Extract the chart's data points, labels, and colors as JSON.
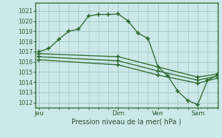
{
  "background_color": "#cce8e8",
  "plot_bg_color": "#cce8e8",
  "line_color": "#2d6a2d",
  "grid_color": "#99bbbb",
  "title": "Pression niveau de la mer( hPa )",
  "ylabel_values": [
    1012,
    1013,
    1014,
    1015,
    1016,
    1017,
    1018,
    1019,
    1020,
    1021
  ],
  "xlim": [
    -2,
    108
  ],
  "ylim": [
    1011.5,
    1021.8
  ],
  "x_tick_positions": [
    0,
    48,
    72,
    96
  ],
  "x_tick_labels": [
    "Jeu",
    "Dim",
    "Ven",
    "Sam"
  ],
  "series1_x": [
    0,
    6,
    12,
    18,
    24,
    30,
    36,
    42,
    48,
    54,
    60,
    66,
    72,
    78,
    84,
    90,
    96,
    102,
    108
  ],
  "series1_y": [
    1017.0,
    1017.3,
    1018.2,
    1019.0,
    1019.2,
    1020.5,
    1020.65,
    1020.65,
    1020.7,
    1020.0,
    1018.8,
    1018.3,
    1015.5,
    1014.6,
    1013.1,
    1012.2,
    1011.8,
    1014.2,
    1014.7
  ],
  "series2_x": [
    0,
    48,
    72,
    96,
    108
  ],
  "series2_y": [
    1016.8,
    1016.5,
    1015.5,
    1014.5,
    1014.8
  ],
  "series3_x": [
    0,
    48,
    72,
    96,
    108
  ],
  "series3_y": [
    1016.5,
    1016.1,
    1015.1,
    1014.2,
    1014.6
  ],
  "series4_x": [
    0,
    48,
    72,
    96,
    108
  ],
  "series4_y": [
    1016.2,
    1015.7,
    1014.7,
    1013.9,
    1014.4
  ],
  "marker": "+",
  "markersize": 5,
  "linewidth": 1.0
}
